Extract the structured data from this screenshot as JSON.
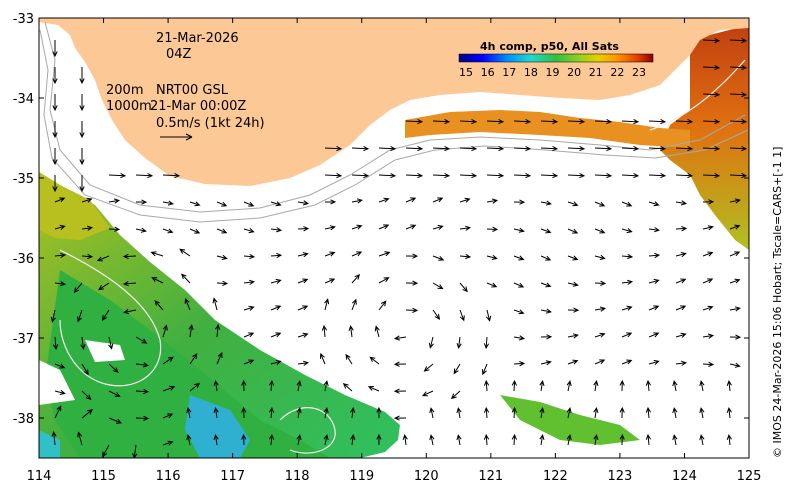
{
  "map": {
    "date": "21-Mar-2026",
    "time": "04Z",
    "contour_label_200m": "200m",
    "contour_label_1000m": "1000m",
    "product_label": "NRT00 GSL",
    "product_time": "21-Mar 00:00Z",
    "scale_arrow_label": "0.5m/s (1kt 24h)",
    "credit": "© IMOS 24-Mar-2026 15:06 Hobart; Tscale=CARS+[-1 1]",
    "x_ticks": [
      "114",
      "115",
      "116",
      "117",
      "118",
      "119",
      "120",
      "121",
      "122",
      "123",
      "124",
      "125"
    ],
    "y_ticks": [
      "-33",
      "-34",
      "-35",
      "-36",
      "-37",
      "-38"
    ],
    "lon_range": [
      114,
      125
    ],
    "lat_range": [
      -38.5,
      -33
    ],
    "land_color": "#fcc895"
  },
  "colorbar": {
    "title": "4h comp, p50, All Sats",
    "ticks": [
      "15",
      "16",
      "17",
      "18",
      "19",
      "20",
      "21",
      "22",
      "23"
    ],
    "colors": [
      "#00007f",
      "#0000ff",
      "#0080ff",
      "#00d0ff",
      "#40e0a0",
      "#30c030",
      "#90d020",
      "#e0d000",
      "#ff9000",
      "#e04000",
      "#8c0000"
    ]
  }
}
